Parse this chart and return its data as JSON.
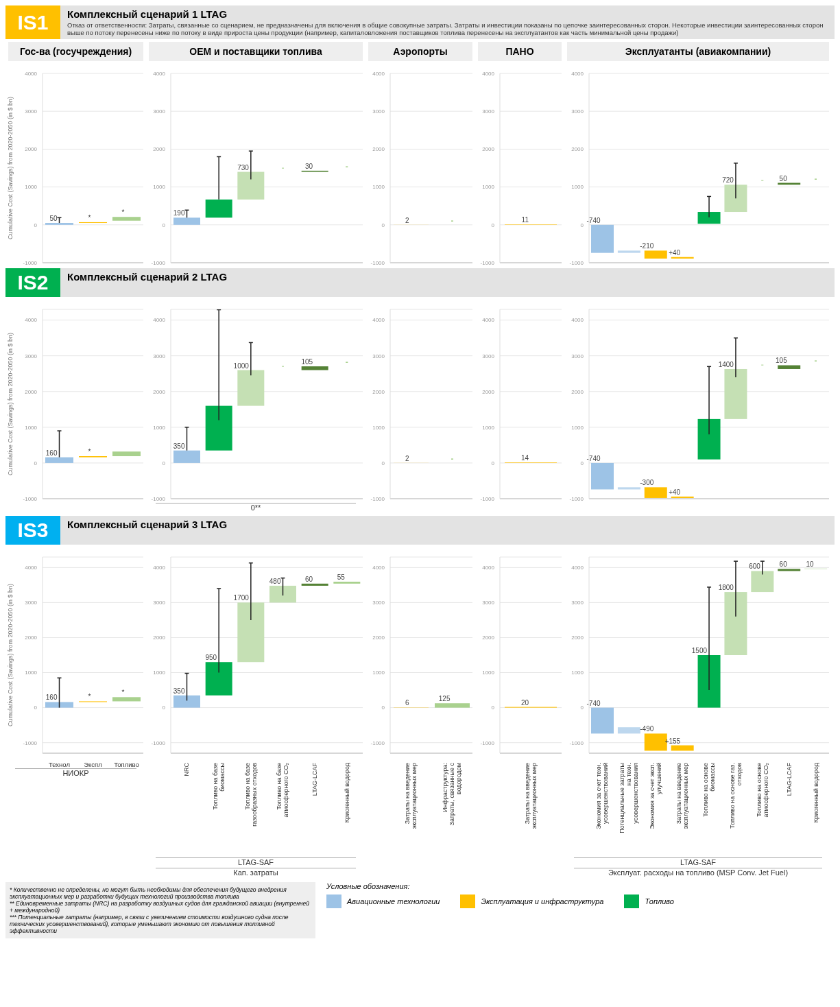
{
  "chart_data": [
    {
      "type": "other",
      "title": "Комплексный сценарий 1 LTAG",
      "color": "#ffc000",
      "annotations": [
        "IS1",
        "Отказ от ответственности: Затраты, связанные со сценарием, не предназначены для включения в общие совокупные затраты. Затраты и инвестиции показаны по цепочке заинтересованных сторон. Некоторые инвестиции заинтересованных сторон выше по потоку перенесены ниже по потоку в виде прироста цены продукции (например, капиталовложения поставщиков топлива перенесены на эксплуатантов как часть минимальной цены продажи)"
      ]
    },
    {
      "type": "bar",
      "title": "Гос-ва (госучреждения)",
      "ylabel": "Cumulative Cost (Savings) from 2020-2050 (in $ bn)",
      "categories": [
        null,
        null,
        null
      ],
      "base": [
        0,
        50,
        110
      ],
      "values": [
        50,
        20,
        100
      ],
      "colors": [
        "#9dc3e6",
        "#ffc000",
        "#a9d18e"
      ],
      "errors": [
        [
          50,
          190
        ],
        null,
        null
      ],
      "value_labels": [
        "50",
        "*",
        "*"
      ],
      "ylim": [
        -1000,
        4000
      ],
      "yticks": [
        -1000,
        0,
        1000,
        2000,
        3000,
        4000
      ],
      "grid": "y"
    },
    {
      "type": "bar",
      "title": "OEM и поставщики топлива",
      "categories": [
        null,
        null,
        null,
        null,
        null,
        null
      ],
      "base": [
        0,
        190,
        670,
        null,
        1400,
        null
      ],
      "values": [
        190,
        480,
        730,
        null,
        30,
        null
      ],
      "colors": [
        "#9dc3e6",
        "#00b050",
        "#c5e0b4",
        "#c5e0b4",
        "#548235",
        "#a9d18e"
      ],
      "errors": [
        [
          190,
          390
        ],
        [
          670,
          1800
        ],
        [
          1200,
          1950
        ],
        null,
        null,
        null
      ],
      "value_labels": [
        "190",
        null,
        "730",
        "-",
        "30",
        "-"
      ],
      "ylim": [
        -1000,
        4000
      ],
      "yticks": [
        -1000,
        0,
        1000,
        2000,
        3000,
        4000
      ],
      "grid": "y"
    },
    {
      "type": "bar",
      "title": "Аэропорты",
      "categories": [
        null,
        null
      ],
      "values": [
        2,
        null
      ],
      "colors": [
        "#ffc000",
        "#a9d18e"
      ],
      "value_labels": [
        "2",
        "-"
      ],
      "ylim": [
        -1000,
        4000
      ],
      "yticks": [
        -1000,
        0,
        1000,
        2000,
        3000,
        4000
      ],
      "grid": "y"
    },
    {
      "type": "bar",
      "title": "ПАНО",
      "categories": [
        null
      ],
      "values": [
        11
      ],
      "colors": [
        "#ffc000"
      ],
      "value_labels": [
        "11"
      ],
      "ylim": [
        -1000,
        4000
      ],
      "yticks": [
        -1000,
        0,
        1000,
        2000,
        3000,
        4000
      ],
      "grid": "y"
    },
    {
      "type": "bar",
      "title": "Эксплуатанты (авиакомпании)",
      "categories": [
        null,
        null,
        null,
        null,
        null,
        null,
        null,
        null,
        null
      ],
      "base": [
        0,
        -740,
        -680,
        -890,
        30,
        340,
        null,
        1060,
        null
      ],
      "values": [
        -740,
        60,
        -210,
        40,
        310,
        720,
        null,
        50,
        null
      ],
      "colors": [
        "#9dc3e6",
        "#bdd7ee",
        "#ffc000",
        "#ffc000",
        "#00b050",
        "#c5e0b4",
        "#c5e0b4",
        "#548235",
        "#a9d18e"
      ],
      "errors": [
        null,
        null,
        null,
        null,
        [
          200,
          750
        ],
        [
          700,
          1630
        ],
        null,
        null,
        null
      ],
      "value_labels": [
        "-740",
        null,
        "-210",
        "+40",
        null,
        "720",
        "-",
        "50",
        "-"
      ],
      "ylim": [
        -1000,
        4000
      ],
      "yticks": [
        -1000,
        0,
        1000,
        2000,
        3000,
        4000
      ],
      "grid": "y"
    },
    {
      "type": "other",
      "title": "Комплексный сценарий 2 LTAG",
      "color": "#00b050",
      "annotations": [
        "IS2"
      ]
    },
    {
      "type": "bar",
      "ylabel": "Cumulative Cost (Savings) from 2020-2050 (in $ bn)",
      "categories": [
        null,
        null,
        null
      ],
      "base": [
        0,
        160,
        190
      ],
      "values": [
        160,
        30,
        130
      ],
      "colors": [
        "#9dc3e6",
        "#ffc000",
        "#a9d18e"
      ],
      "errors": [
        [
          160,
          900
        ],
        null,
        null
      ],
      "value_labels": [
        "160",
        "*",
        null
      ],
      "ylim": [
        -1000,
        4300
      ],
      "yticks": [
        -1000,
        0,
        1000,
        2000,
        3000,
        4000
      ],
      "grid": "y"
    },
    {
      "type": "bar",
      "annotations": [
        "0**"
      ],
      "categories": [
        null,
        null,
        null,
        null,
        null,
        null
      ],
      "base": [
        0,
        350,
        1600,
        null,
        2600,
        null
      ],
      "values": [
        350,
        1250,
        1000,
        null,
        105,
        null
      ],
      "colors": [
        "#9dc3e6",
        "#00b050",
        "#c5e0b4",
        "#c5e0b4",
        "#548235",
        "#a9d18e"
      ],
      "errors": [
        [
          350,
          1000
        ],
        [
          1200,
          4290
        ],
        [
          2450,
          3370
        ],
        null,
        null,
        null
      ],
      "value_labels": [
        "350",
        null,
        "1000",
        "-",
        "105",
        "-"
      ],
      "ylim": [
        -1000,
        4300
      ],
      "yticks": [
        -1000,
        0,
        1000,
        2000,
        3000,
        4000
      ],
      "grid": "y"
    },
    {
      "type": "bar",
      "categories": [
        null,
        null
      ],
      "values": [
        2,
        null
      ],
      "colors": [
        "#ffc000",
        "#a9d18e"
      ],
      "value_labels": [
        "2",
        "-"
      ],
      "ylim": [
        -1000,
        4300
      ],
      "yticks": [
        -1000,
        0,
        1000,
        2000,
        3000,
        4000
      ],
      "grid": "y"
    },
    {
      "type": "bar",
      "categories": [
        null
      ],
      "values": [
        14
      ],
      "colors": [
        "#ffc000"
      ],
      "value_labels": [
        "14"
      ],
      "ylim": [
        -1000,
        4300
      ],
      "yticks": [
        -1000,
        0,
        1000,
        2000,
        3000,
        4000
      ],
      "grid": "y"
    },
    {
      "type": "bar",
      "categories": [
        null,
        null,
        null,
        null,
        null,
        null,
        null,
        null,
        null
      ],
      "base": [
        0,
        -740,
        -680,
        -980,
        100,
        1230,
        null,
        2630,
        null
      ],
      "values": [
        -740,
        60,
        -300,
        40,
        1130,
        1400,
        null,
        105,
        null
      ],
      "colors": [
        "#9dc3e6",
        "#bdd7ee",
        "#ffc000",
        "#ffc000",
        "#00b050",
        "#c5e0b4",
        "#c5e0b4",
        "#548235",
        "#a9d18e"
      ],
      "errors": [
        null,
        null,
        null,
        null,
        [
          800,
          2700
        ],
        [
          2400,
          3500
        ],
        null,
        null,
        null
      ],
      "value_labels": [
        "-740",
        null,
        "-300",
        "+40",
        null,
        "1400",
        "-",
        "105",
        "-"
      ],
      "ylim": [
        -1000,
        4300
      ],
      "yticks": [
        -1000,
        0,
        1000,
        2000,
        3000,
        4000
      ],
      "grid": "y"
    },
    {
      "type": "other",
      "title": "Комплексный сценарий 3 LTAG",
      "color": "#00b0f0",
      "annotations": [
        "IS3"
      ]
    },
    {
      "type": "bar",
      "ylabel": "Cumulative Cost (Savings) from 2020-2050 (in $ bn)",
      "annotations": [
        "НИОКР"
      ],
      "categories": [
        "Технол",
        "Экспл",
        "Топливо"
      ],
      "base": [
        0,
        160,
        180
      ],
      "values": [
        160,
        20,
        120
      ],
      "colors": [
        "#9dc3e6",
        "#ffc000",
        "#a9d18e"
      ],
      "errors": [
        [
          0,
          850
        ],
        null,
        null
      ],
      "value_labels": [
        "160",
        "*",
        "*"
      ],
      "ylim": [
        -1300,
        4300
      ],
      "yticks": [
        -1000,
        0,
        1000,
        2000,
        3000,
        4000
      ],
      "grid": "y"
    },
    {
      "type": "bar",
      "annotations": [
        "LTAG-SAF",
        "Кап. затраты"
      ],
      "categories": [
        "NRC",
        "Топливо на базе биомассы",
        "Топливо на базе газообразных отходов",
        "Топливо на базе атмосферного CO₂",
        "LTAG-LCAF",
        "Криогенный водород"
      ],
      "base": [
        0,
        350,
        1300,
        3000,
        3480,
        3540
      ],
      "values": [
        350,
        950,
        1700,
        480,
        60,
        55
      ],
      "colors": [
        "#9dc3e6",
        "#00b050",
        "#c5e0b4",
        "#c5e0b4",
        "#548235",
        "#a9d18e"
      ],
      "errors": [
        [
          200,
          980
        ],
        [
          1000,
          3400
        ],
        [
          2500,
          4130
        ],
        [
          3200,
          3700
        ],
        null,
        null
      ],
      "value_labels": [
        "350",
        "950",
        "1700",
        "480",
        "60",
        "55"
      ],
      "ylim": [
        -1300,
        4300
      ],
      "yticks": [
        -1000,
        0,
        1000,
        2000,
        3000,
        4000
      ],
      "grid": "y"
    },
    {
      "type": "bar",
      "categories": [
        "Затраты на введение эксплуатационных мер",
        "Инфраструктура: Затраты, связанные с водородом"
      ],
      "values": [
        6,
        125
      ],
      "colors": [
        "#ffc000",
        "#a9d18e"
      ],
      "value_labels": [
        "6",
        "125"
      ],
      "ylim": [
        -1300,
        4300
      ],
      "yticks": [
        -1000,
        0,
        1000,
        2000,
        3000,
        4000
      ],
      "grid": "y"
    },
    {
      "type": "bar",
      "categories": [
        "Затраты на введение эксплуатационных мер"
      ],
      "values": [
        20
      ],
      "colors": [
        "#ffc000"
      ],
      "value_labels": [
        "20"
      ],
      "ylim": [
        -1300,
        4300
      ],
      "yticks": [
        -1000,
        0,
        1000,
        2000,
        3000,
        4000
      ],
      "grid": "y"
    },
    {
      "type": "bar",
      "annotations": [
        "LTAG-SAF",
        "Эксплуат. расходы на топливо (MSP Conv. Jet Fuel)"
      ],
      "categories": [
        "Экономия за счет техн. усовершенствований",
        "Потенциальные затраты на техн. усовершенствования",
        "Экономия за счет эксп. улучшений",
        "Затраты на введение эксплуатационных мер",
        "Топливо на основе биомассы",
        "Топливо на основе газ. отходов",
        "Топливо на основе атмосферного CO₂",
        "LTAG-LCAF",
        "Криогенный водород"
      ],
      "base": [
        0,
        -740,
        -740,
        -1230,
        0,
        1500,
        3300,
        3900,
        3960
      ],
      "values": [
        -740,
        180,
        -490,
        155,
        1500,
        1800,
        600,
        60,
        10
      ],
      "colors": [
        "#9dc3e6",
        "#bdd7ee",
        "#ffc000",
        "#ffc000",
        "#00b050",
        "#c5e0b4",
        "#c5e0b4",
        "#548235",
        "#a9d18e"
      ],
      "errors": [
        null,
        null,
        null,
        null,
        [
          500,
          3440
        ],
        [
          2600,
          4180
        ],
        [
          3800,
          4180
        ],
        null,
        null
      ],
      "value_labels": [
        "-740",
        null,
        "-490",
        "+155",
        "1500",
        "1800",
        "600",
        "60",
        "10"
      ],
      "ylim": [
        -1300,
        4300
      ],
      "yticks": [
        -1000,
        0,
        1000,
        2000,
        3000,
        4000
      ],
      "grid": "y"
    },
    {
      "type": "other",
      "title": "Условные обозначения:",
      "categories": [
        "Авиационные технологии",
        "Эксплуатация и инфраструктура",
        "Топливо"
      ],
      "colors": [
        "#9dc3e6",
        "#ffc000",
        "#00b050"
      ],
      "annotations": [
        "* Количественно не определены, но могут быть необходимы для обеспечения будущего внедрения эксплуатационных мер и разработки будущих технологий производства топлива",
        "** Единовременные затраты (NRC) на разработку воздушных судов для гражданской авиации (внутренней + международной)",
        "*** Потенциальные затраты (например, в связи с увеличением стоимости воздушного судна после технических усовершенствований), которые уменьшают экономию от повышения топливной эффективности"
      ]
    }
  ]
}
